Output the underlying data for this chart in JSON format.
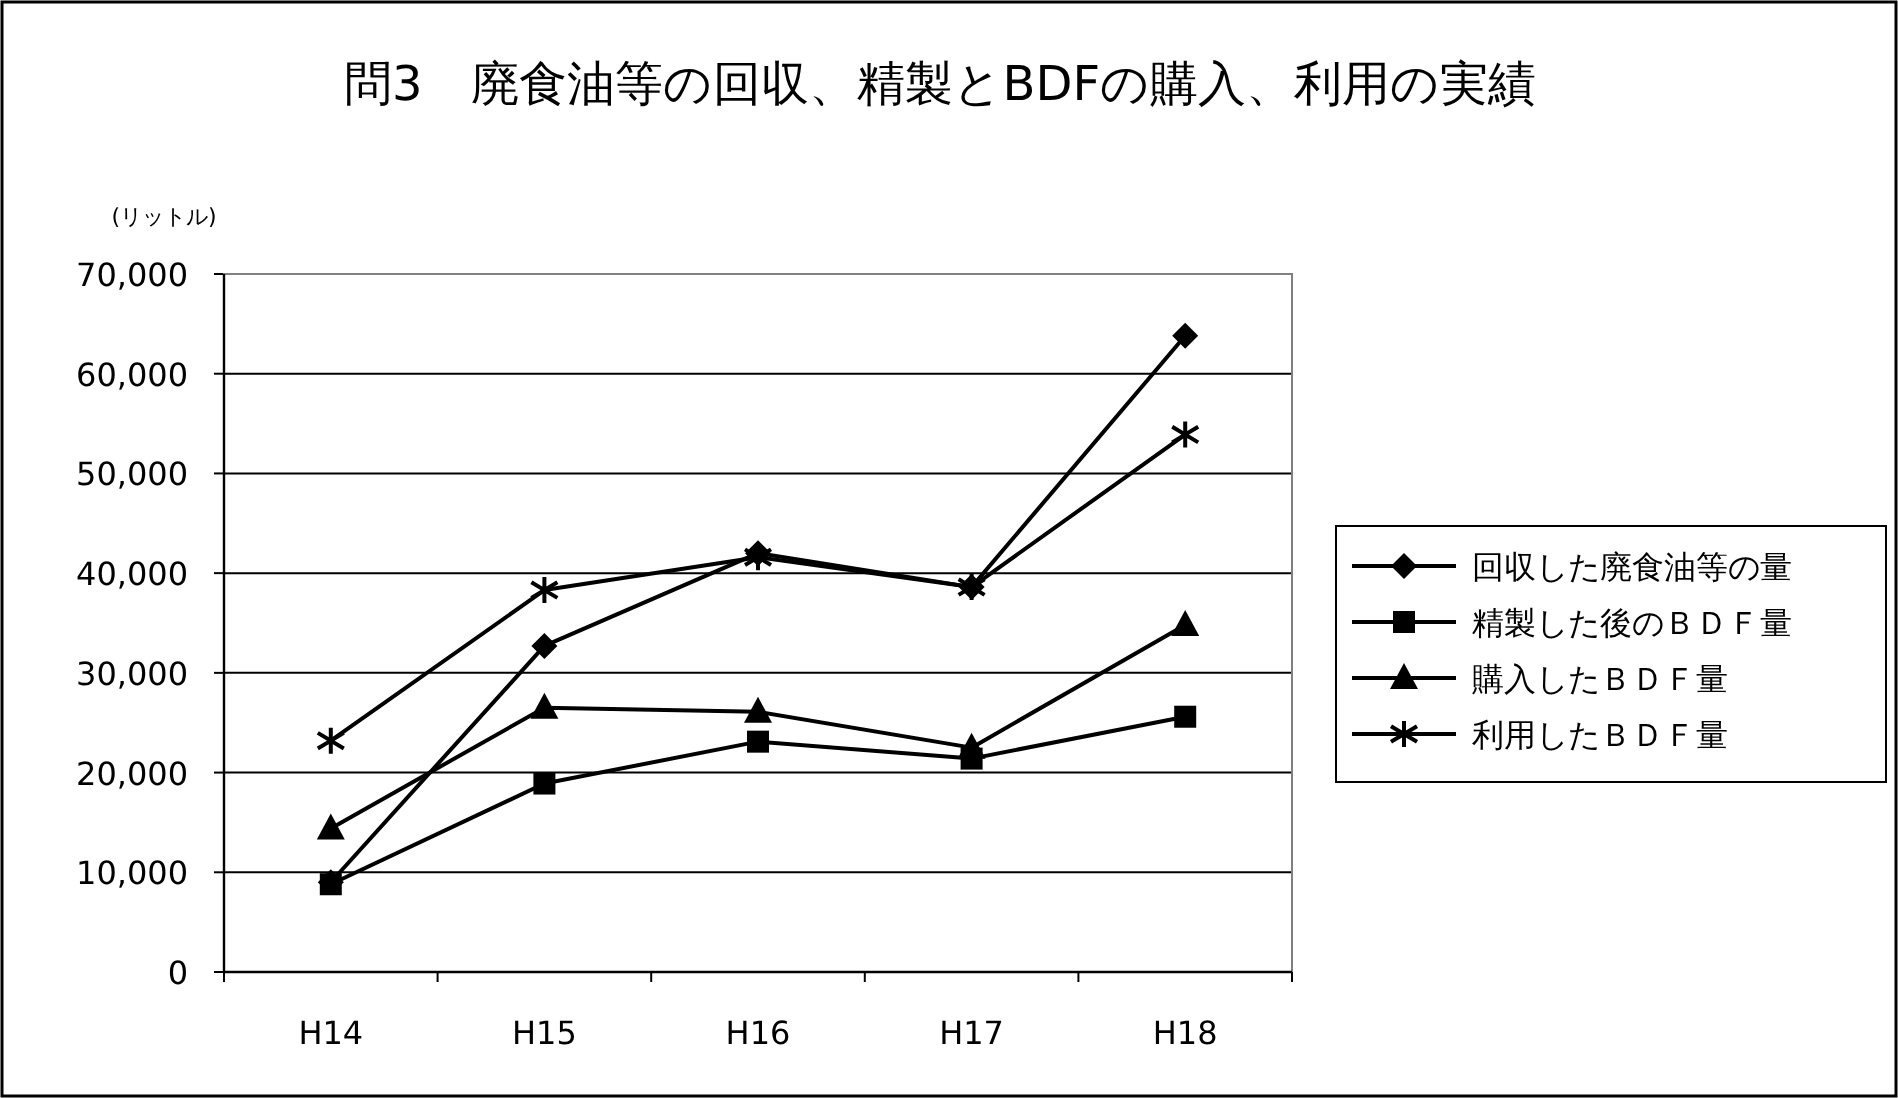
{
  "chart_data": {
    "type": "line",
    "title": "問3　廃食油等の回収、精製とBDFの購入、利用の実績",
    "ylabel": "(リットル)",
    "categories": [
      "H14",
      "H15",
      "H16",
      "H17",
      "H18"
    ],
    "series": [
      {
        "name": "回収した廃食油等の量",
        "color": "#000000",
        "marker": "diamond",
        "values": [
          9000,
          32700,
          42000,
          38600,
          63800
        ]
      },
      {
        "name": "精製した後のＢＤＦ量",
        "color": "#000000",
        "marker": "square",
        "values": [
          8800,
          18900,
          23100,
          21400,
          25600
        ]
      },
      {
        "name": "購入したＢＤＦ量",
        "color": "#000000",
        "marker": "triangle",
        "values": [
          14400,
          26500,
          26100,
          22500,
          34800
        ]
      },
      {
        "name": "利用したＢＤＦ量",
        "color": "#000000",
        "marker": "cross",
        "values": [
          23200,
          38300,
          41600,
          38600,
          53900
        ]
      }
    ],
    "ylim": [
      0,
      70000
    ],
    "yticks": [
      {
        "value": 0,
        "label": "0"
      },
      {
        "value": 10000,
        "label": "10,000"
      },
      {
        "value": 20000,
        "label": "20,000"
      },
      {
        "value": 30000,
        "label": "30,000"
      },
      {
        "value": 40000,
        "label": "40,000"
      },
      {
        "value": 50000,
        "label": "50,000"
      },
      {
        "value": 60000,
        "label": "60,000"
      },
      {
        "value": 70000,
        "label": "70,000"
      }
    ],
    "grid": "y",
    "legend": "right",
    "line_style": "solid"
  }
}
